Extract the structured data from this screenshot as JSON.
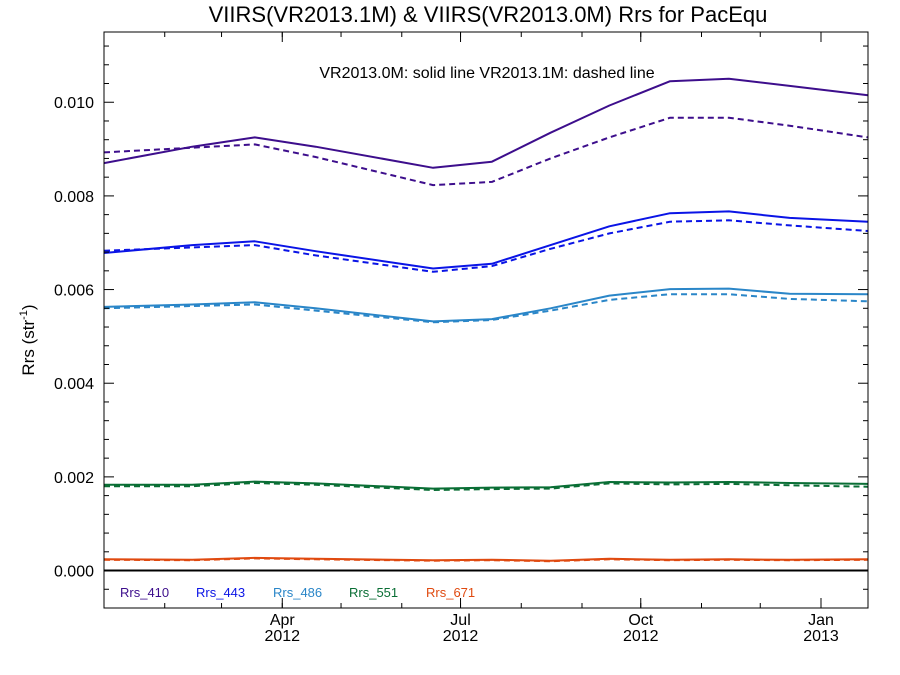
{
  "chart_data": {
    "type": "line",
    "title": "VIIRS(VR2013.1M) & VIIRS(VR2013.0M)  Rrs for PacEqu",
    "subtitle": "VR2013.0M: solid line   VR2013.1M: dashed line",
    "ylabel": "Rrs (str",
    "ylabel_sup": "-1",
    "ylabel_close": ")",
    "ylim": [
      -0.0008,
      0.0115
    ],
    "xlim": [
      "2012-01-01",
      "2013-01-25"
    ],
    "y_ticks": [
      0.0,
      0.002,
      0.004,
      0.006,
      0.008,
      0.01
    ],
    "y_tick_labels": [
      "0.000",
      "0.002",
      "0.004",
      "0.006",
      "0.008",
      "0.010"
    ],
    "x_ticks": [
      {
        "date": "2012-04-01",
        "month": "Apr",
        "year": "2012"
      },
      {
        "date": "2012-07-01",
        "month": "Jul",
        "year": "2012"
      },
      {
        "date": "2012-10-01",
        "month": "Oct",
        "year": "2012"
      },
      {
        "date": "2013-01-01",
        "month": "Jan",
        "year": "2013"
      }
    ],
    "x": [
      "2012-01-01",
      "2012-02-15",
      "2012-03-18",
      "2012-04-18",
      "2012-06-17",
      "2012-07-17",
      "2012-08-16",
      "2012-09-15",
      "2012-10-16",
      "2012-11-15",
      "2012-12-16",
      "2013-01-25"
    ],
    "series": [
      {
        "name": "Rrs_410",
        "color": "#3d0e8c",
        "style": "solid",
        "values": [
          0.0087,
          0.00905,
          0.00925,
          0.00905,
          0.0086,
          0.00873,
          0.00935,
          0.00993,
          0.01045,
          0.0105,
          0.01035,
          0.01015
        ]
      },
      {
        "name": "Rrs_410",
        "color": "#3d0e8c",
        "style": "dashed",
        "values": [
          0.00893,
          0.00903,
          0.0091,
          0.00883,
          0.00823,
          0.0083,
          0.0088,
          0.00925,
          0.00967,
          0.00967,
          0.0095,
          0.00925
        ]
      },
      {
        "name": "Rrs_443",
        "color": "#0a14e6",
        "style": "solid",
        "values": [
          0.00678,
          0.00695,
          0.00703,
          0.00682,
          0.00645,
          0.00655,
          0.00695,
          0.00735,
          0.00763,
          0.00767,
          0.00753,
          0.00745
        ]
      },
      {
        "name": "Rrs_443",
        "color": "#0a14e6",
        "style": "dashed",
        "values": [
          0.00683,
          0.0069,
          0.00695,
          0.00673,
          0.00638,
          0.0065,
          0.00687,
          0.0072,
          0.00745,
          0.00748,
          0.00737,
          0.00725
        ]
      },
      {
        "name": "Rrs_486",
        "color": "#2a86c8",
        "style": "solid",
        "values": [
          0.00563,
          0.00568,
          0.00573,
          0.0056,
          0.00532,
          0.00537,
          0.0056,
          0.00587,
          0.00601,
          0.00602,
          0.00591,
          0.0059
        ]
      },
      {
        "name": "Rrs_486",
        "color": "#2a86c8",
        "style": "dashed",
        "values": [
          0.0056,
          0.00565,
          0.00568,
          0.00555,
          0.0053,
          0.00535,
          0.00555,
          0.00578,
          0.0059,
          0.0059,
          0.0058,
          0.00575
        ]
      },
      {
        "name": "Rrs_551",
        "color": "#0a6e35",
        "style": "solid",
        "values": [
          0.00183,
          0.00183,
          0.0019,
          0.00186,
          0.00175,
          0.00177,
          0.00178,
          0.00189,
          0.00188,
          0.00189,
          0.00187,
          0.00185
        ]
      },
      {
        "name": "Rrs_551",
        "color": "#0a6e35",
        "style": "dashed",
        "values": [
          0.0018,
          0.0018,
          0.00187,
          0.00183,
          0.00172,
          0.00174,
          0.00175,
          0.00186,
          0.00184,
          0.00185,
          0.00182,
          0.00179
        ]
      },
      {
        "name": "Rrs_671",
        "color": "#e04a10",
        "style": "solid",
        "values": [
          0.00024,
          0.00023,
          0.00027,
          0.00025,
          0.00022,
          0.00023,
          0.00021,
          0.00025,
          0.00023,
          0.00024,
          0.00023,
          0.00024
        ]
      },
      {
        "name": "Rrs_671",
        "color": "#e04a10",
        "style": "dashed",
        "values": [
          0.00023,
          0.00022,
          0.00026,
          0.00024,
          0.00021,
          0.00022,
          0.0002,
          0.00024,
          0.00022,
          0.00023,
          0.00022,
          0.00023
        ]
      }
    ],
    "legend": [
      {
        "label": "Rrs_410",
        "color": "#3d0e8c"
      },
      {
        "label": "Rrs_443",
        "color": "#0a14e6"
      },
      {
        "label": "Rrs_486",
        "color": "#2a86c8"
      },
      {
        "label": "Rrs_551",
        "color": "#0a6e35"
      },
      {
        "label": "Rrs_671",
        "color": "#e04a10"
      }
    ],
    "legend_position": "bottom-left",
    "zero_line": true,
    "grid": false
  }
}
